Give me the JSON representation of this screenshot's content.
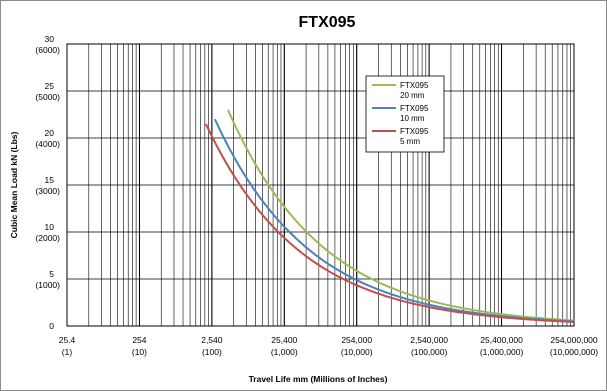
{
  "chart_data": {
    "type": "line",
    "title": "FTX095",
    "xlabel": "Travel Life mm (Millions of Inches)",
    "ylabel": "Cubic Mean Load kN (Lbs)",
    "x_scale": "log",
    "xlim": [
      25.4,
      254000000
    ],
    "ylim": [
      0,
      30
    ],
    "grid": true,
    "legend_position": "top-right",
    "x_ticks": [
      {
        "value": 25.4,
        "label": "25.4",
        "sublabel": "(1)"
      },
      {
        "value": 254,
        "label": "254",
        "sublabel": "(10)"
      },
      {
        "value": 2540,
        "label": "2,540",
        "sublabel": "(100)"
      },
      {
        "value": 25400,
        "label": "25,400",
        "sublabel": "(1,000)"
      },
      {
        "value": 254000,
        "label": "254,000",
        "sublabel": "(10,000)"
      },
      {
        "value": 2540000,
        "label": "2,540,000",
        "sublabel": "(100,000)"
      },
      {
        "value": 25400000,
        "label": "25,400,000",
        "sublabel": "(1,000,000)"
      },
      {
        "value": 254000000,
        "label": "254,000,000",
        "sublabel": "(10,000,000)"
      }
    ],
    "y_ticks": [
      {
        "value": 0,
        "label": "0",
        "sublabel": ""
      },
      {
        "value": 5,
        "label": "5",
        "sublabel": "(1000)"
      },
      {
        "value": 10,
        "label": "10",
        "sublabel": "(2000)"
      },
      {
        "value": 15,
        "label": "15",
        "sublabel": "(3000)"
      },
      {
        "value": 20,
        "label": "20",
        "sublabel": "(4000)"
      },
      {
        "value": 25,
        "label": "25",
        "sublabel": "(5000)"
      },
      {
        "value": 30,
        "label": "30",
        "sublabel": "(6000)"
      }
    ],
    "series": [
      {
        "name": "FTX095 20 mm",
        "legend_lines": [
          "FTX095",
          "20 mm"
        ],
        "color": "#9bbb59",
        "x": [
          4233,
          10000,
          30000,
          100000,
          300000,
          1000000,
          3000000,
          10000000,
          30000000,
          100000000,
          254000000
        ],
        "y": [
          23.0,
          17.3,
          12.0,
          8.0,
          5.55,
          3.71,
          2.57,
          1.72,
          1.19,
          0.8,
          0.58
        ]
      },
      {
        "name": "FTX095 10 mm",
        "legend_lines": [
          "FTX095",
          "10 mm"
        ],
        "color": "#4f81bd",
        "x": [
          2800,
          10000,
          30000,
          100000,
          300000,
          1000000,
          3000000,
          10000000,
          30000000,
          100000000,
          254000000
        ],
        "y": [
          22.0,
          14.4,
          10.0,
          6.66,
          4.62,
          3.09,
          2.14,
          1.43,
          0.99,
          0.66,
          0.49
        ]
      },
      {
        "name": "FTX095 5 mm",
        "legend_lines": [
          "FTX095",
          "5 mm"
        ],
        "color": "#c0504d",
        "x": [
          2100,
          10000,
          30000,
          100000,
          300000,
          1000000,
          3000000,
          10000000,
          30000000,
          100000000,
          254000000
        ],
        "y": [
          21.5,
          12.8,
          8.87,
          5.91,
          4.1,
          2.74,
          1.9,
          1.27,
          0.88,
          0.59,
          0.43
        ]
      }
    ]
  }
}
